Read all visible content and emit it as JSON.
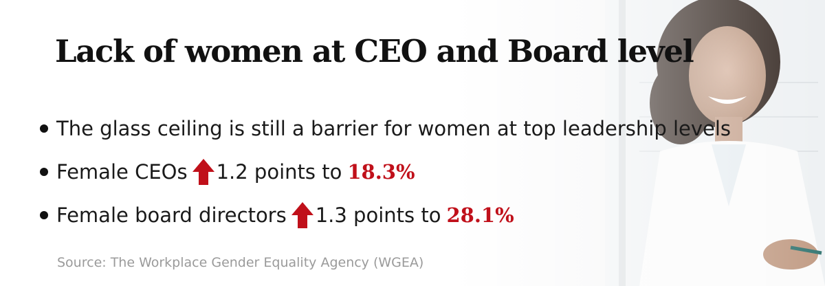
{
  "title": "Lack of women at CEO and Board level",
  "bullets": [
    {
      "text": "The glass ceiling is still a barrier for women at top leadership levels"
    },
    {
      "label": "Female CEOs",
      "change": "1.2 points to",
      "value": "18.3%"
    },
    {
      "label": "Female board directors",
      "change": "1.3 points to",
      "value": "28.1%"
    }
  ],
  "source": "Source: The Workplace Gender Equality Agency (WGEA)",
  "colors": {
    "accent": "#c0101a",
    "text": "#111111",
    "source": "#9a9a9a"
  },
  "icons": {
    "bullet": "bullet-dot",
    "trend": "red-up-arrow-icon"
  }
}
